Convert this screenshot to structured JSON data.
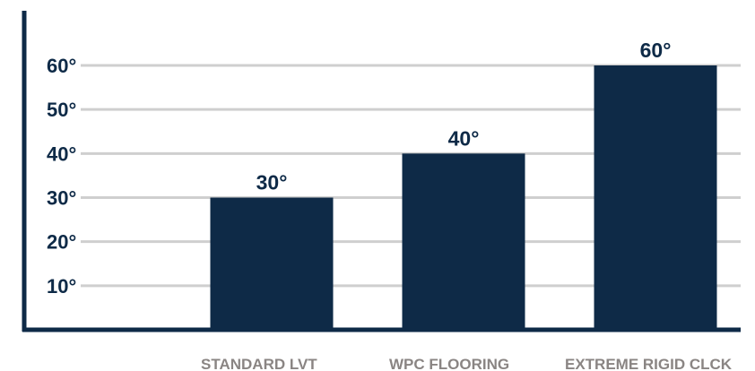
{
  "chart_data": {
    "type": "bar",
    "categories": [
      "STANDARD LVT",
      "WPC FLOORING",
      "EXTREME RIGID CLCK"
    ],
    "values": [
      30,
      40,
      60
    ],
    "data_labels": [
      "30°",
      "40°",
      "60°"
    ],
    "y_ticks": [
      10,
      20,
      30,
      40,
      50,
      60
    ],
    "y_tick_labels": [
      "10°",
      "20°",
      "30°",
      "40°",
      "50°",
      "60°"
    ],
    "title": "",
    "xlabel": "",
    "ylabel": "",
    "ylim": [
      0,
      60
    ],
    "grid": true,
    "legend": "none"
  },
  "colors": {
    "bar": "#0e2a47",
    "axis": "#0e2a47",
    "grid": "#cfcfcf",
    "tick_text": "#0e2a47",
    "data_label_text": "#0e2a47",
    "category_text": "#8a8583"
  }
}
